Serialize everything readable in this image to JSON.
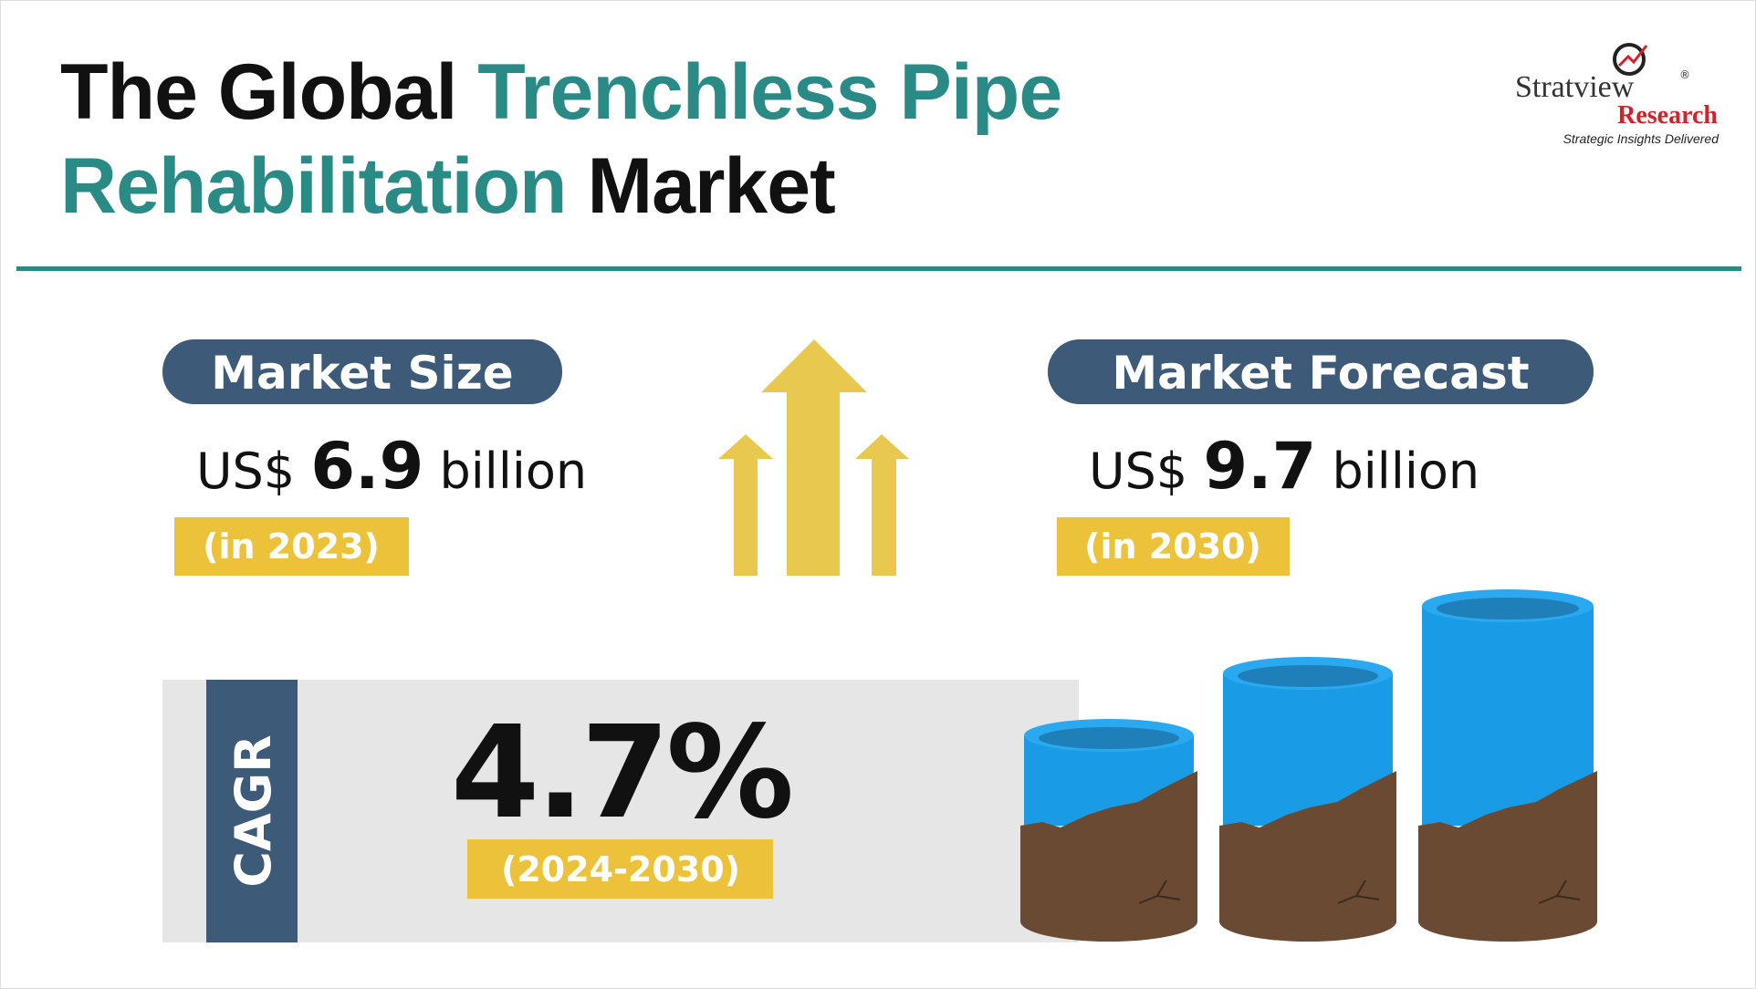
{
  "header": {
    "title_line_1": [
      "The Global",
      "Trenchless Pipe"
    ],
    "title_line_2": [
      "Rehabilitation",
      "Market"
    ]
  },
  "logo": {
    "name": "Stratview",
    "registered": "®",
    "sub_name": "Research",
    "tagline": "Strategic Insights Delivered"
  },
  "market_size": {
    "label": "Market Size",
    "currency": "US$",
    "value": 6.9,
    "unit": "billion",
    "period": "(in 2023)"
  },
  "market_forecast": {
    "label": "Market Forecast",
    "currency": "US$",
    "value": 9.7,
    "unit": "billion",
    "period": "(in 2030)"
  },
  "cagr": {
    "label": "CAGR",
    "value": "4.7%",
    "period": "(2024-2030)"
  }
}
